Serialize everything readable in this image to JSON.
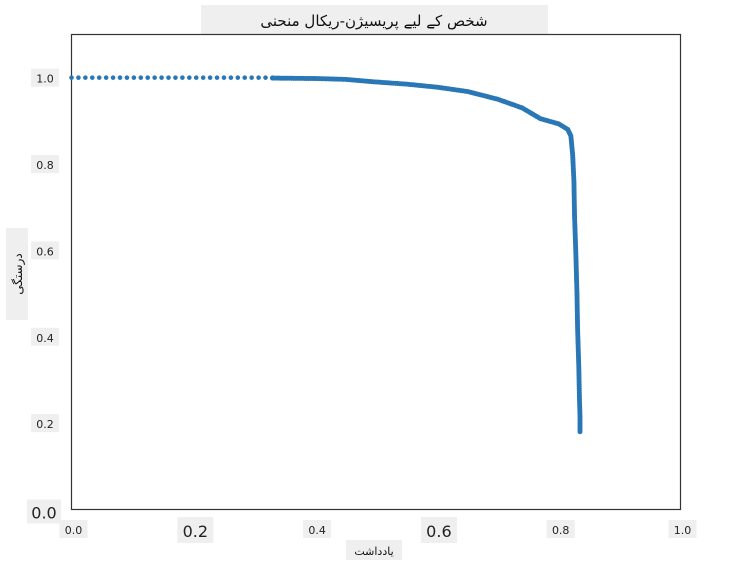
{
  "chart_data": {
    "type": "scatter",
    "title": "شخص کے لیے پریسیژن-ریکال منحنی",
    "xlabel": "یادداشت",
    "ylabel": "درستگی",
    "xlim": [
      0.0,
      1.0
    ],
    "ylim": [
      0.0,
      1.1
    ],
    "grid": false,
    "color": "#2a77b6",
    "x_ticks": [
      {
        "value": 0.0,
        "label": "0.0",
        "size": "small"
      },
      {
        "value": 0.2,
        "label": "0.2",
        "size": "large"
      },
      {
        "value": 0.4,
        "label": "0.4",
        "size": "small"
      },
      {
        "value": 0.6,
        "label": "0.6",
        "size": "large"
      },
      {
        "value": 0.8,
        "label": "0.8",
        "size": "small"
      },
      {
        "value": 1.0,
        "label": "1.0",
        "size": "small"
      }
    ],
    "y_ticks": [
      {
        "value": 0.0,
        "label": "0.0",
        "size": "large"
      },
      {
        "value": 0.2,
        "label": "0.2",
        "size": "small"
      },
      {
        "value": 0.4,
        "label": "0.4",
        "size": "small"
      },
      {
        "value": 0.6,
        "label": "0.6",
        "size": "small"
      },
      {
        "value": 0.8,
        "label": "0.8",
        "size": "small"
      },
      {
        "value": 1.0,
        "label": "1.0",
        "size": "small"
      }
    ],
    "curve": {
      "sparse_segment": {
        "x_start": 0.0,
        "x_end": 0.33,
        "y": 1.0,
        "points": 30
      },
      "dense_segment": [
        [
          0.33,
          0.999
        ],
        [
          0.4,
          0.998
        ],
        [
          0.45,
          0.996
        ],
        [
          0.5,
          0.99
        ],
        [
          0.55,
          0.985
        ],
        [
          0.6,
          0.978
        ],
        [
          0.65,
          0.968
        ],
        [
          0.7,
          0.95
        ],
        [
          0.74,
          0.93
        ],
        [
          0.77,
          0.905
        ],
        [
          0.8,
          0.893
        ],
        [
          0.815,
          0.88
        ],
        [
          0.82,
          0.865
        ],
        [
          0.823,
          0.82
        ],
        [
          0.825,
          0.76
        ],
        [
          0.826,
          0.68
        ],
        [
          0.828,
          0.6
        ],
        [
          0.83,
          0.5
        ],
        [
          0.831,
          0.42
        ],
        [
          0.833,
          0.33
        ],
        [
          0.834,
          0.26
        ],
        [
          0.835,
          0.215
        ],
        [
          0.835,
          0.18
        ]
      ]
    }
  }
}
